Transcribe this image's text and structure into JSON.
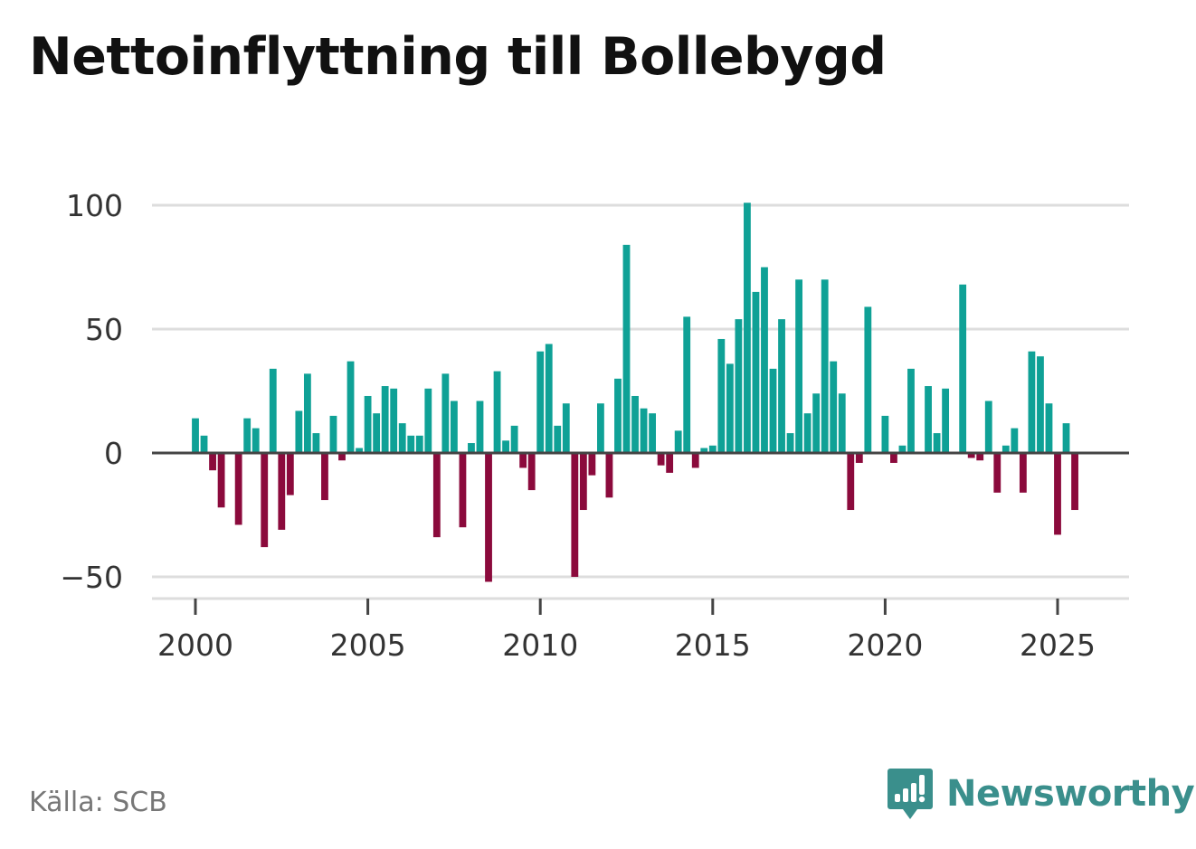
{
  "title": "Nettoinflyttning till Bollebygd",
  "source": "Källa: SCB",
  "brand": {
    "name": "Newsworthy",
    "icon": "newsworthy-logo-icon"
  },
  "colors": {
    "positive": "#0fa196",
    "negative": "#8b0a3c",
    "grid": "#dddddd",
    "zero": "#444444",
    "brand": "#3a8f8c"
  },
  "chart_data": {
    "type": "bar",
    "title": "Nettoinflyttning till Bollebygd",
    "xlabel": "",
    "ylabel": "",
    "ylim": [
      -55,
      105
    ],
    "xlim": [
      1999.5,
      2027.2
    ],
    "yticks": [
      -50,
      0,
      50,
      100
    ],
    "ytick_labels": [
      "−50",
      "0",
      "50",
      "100"
    ],
    "xticks": [
      2000,
      2005,
      2010,
      2015,
      2020,
      2025
    ],
    "xtick_labels": [
      "2000",
      "2005",
      "2010",
      "2015",
      "2020",
      "2025"
    ],
    "grid": true,
    "start_year": 2000,
    "periods_per_year": 4,
    "values": [
      14,
      7,
      -7,
      -22,
      0,
      -29,
      14,
      10,
      -38,
      34,
      -31,
      -17,
      17,
      32,
      8,
      -19,
      15,
      -3,
      37,
      2,
      23,
      16,
      27,
      26,
      12,
      7,
      7,
      26,
      -34,
      32,
      21,
      -30,
      4,
      21,
      -52,
      33,
      5,
      11,
      -6,
      -15,
      41,
      44,
      11,
      20,
      -50,
      -23,
      -9,
      20,
      -18,
      30,
      84,
      23,
      18,
      16,
      -5,
      -8,
      9,
      55,
      -6,
      2,
      3,
      46,
      36,
      54,
      101,
      65,
      75,
      34,
      54,
      8,
      70,
      16,
      24,
      70,
      37,
      24,
      -23,
      -4,
      59,
      0,
      15,
      -4,
      3,
      34,
      0,
      27,
      8,
      26,
      0,
      68,
      -2,
      -3,
      21,
      -16,
      3,
      10,
      -16,
      41,
      39,
      20,
      -33,
      12,
      -23
    ]
  }
}
